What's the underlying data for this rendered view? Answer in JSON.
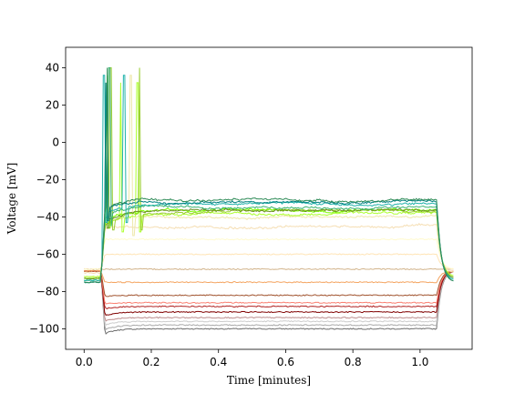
{
  "chart_data": {
    "type": "line",
    "title": "",
    "xlabel": "Time [minutes]",
    "ylabel": "Voltage [mV]",
    "xlim": [
      -0.055,
      1.155
    ],
    "ylim": [
      -111,
      51
    ],
    "xticks": [
      0.0,
      0.2,
      0.4,
      0.6,
      0.8,
      1.0
    ],
    "xtick_labels": [
      "0.0",
      "0.2",
      "0.4",
      "0.6",
      "0.8",
      "1.0"
    ],
    "yticks": [
      -100,
      -80,
      -60,
      -40,
      -20,
      0,
      20,
      40
    ],
    "ytick_labels": [
      "−100",
      "−80",
      "−60",
      "−40",
      "−20",
      "0",
      "20",
      "40"
    ],
    "grid": false,
    "legend": "none",
    "stimulus": {
      "onset": 0.05,
      "offset": 1.05,
      "end": 1.1,
      "baseline": -69
    },
    "series": [
      {
        "color": "#6e6e6e",
        "steady": -100,
        "onset_peak": -104,
        "baseline": -69
      },
      {
        "color": "#a9a9a9",
        "steady": -98,
        "onset_peak": -102,
        "baseline": -69
      },
      {
        "color": "#cccccc",
        "steady": -96,
        "onset_peak": -99,
        "baseline": -69
      },
      {
        "color": "#bc8f8f",
        "steady": -94,
        "onset_peak": -97,
        "baseline": -69
      },
      {
        "color": "#800000",
        "steady": -91,
        "onset_peak": -94,
        "baseline": -69
      },
      {
        "color": "#b22222",
        "steady": -88,
        "onset_peak": -90,
        "baseline": -69
      },
      {
        "color": "#fa8072",
        "steady": -86,
        "onset_peak": -87,
        "baseline": -69
      },
      {
        "color": "#a0522d",
        "steady": -82,
        "onset_peak": -83,
        "baseline": -69
      },
      {
        "color": "#f4a460",
        "steady": -75,
        "onset_peak": -75,
        "baseline": -69
      },
      {
        "color": "#d2b48c",
        "steady": -68,
        "onset_peak": -68,
        "baseline": -68
      },
      {
        "color": "#ffe4b5",
        "steady": -60,
        "onset_peak": -60,
        "baseline": -68
      },
      {
        "color": "#fffacd",
        "steady": -52,
        "onset_peak": -52,
        "baseline": -68
      },
      {
        "color": "#f5deb3",
        "steady": -45,
        "onset_peak": -46,
        "baseline": -70
      },
      {
        "color": "#eee8aa",
        "steady": -40,
        "onset_peak": -45,
        "baseline": -72,
        "spike_times": [
          0.14
        ]
      },
      {
        "color": "#adff2f",
        "steady": -38,
        "onset_peak": -46,
        "baseline": -72,
        "spike_times": [
          0.11,
          0.16
        ]
      },
      {
        "color": "#9acd32",
        "steady": -37,
        "onset_peak": -46,
        "baseline": -73,
        "spike_times": [
          0.08,
          0.165
        ]
      },
      {
        "color": "#7cfc00",
        "steady": -36,
        "onset_peak": -44,
        "baseline": -73,
        "spike_times": [
          0.07
        ]
      },
      {
        "color": "#6b8e23",
        "steady": -36,
        "onset_peak": -44,
        "baseline": -73,
        "spike_times": [
          0.065
        ]
      },
      {
        "color": "#3cb371",
        "steady": -35,
        "onset_peak": -42,
        "baseline": -74,
        "spike_times": [
          0.075
        ]
      },
      {
        "color": "#20b2aa",
        "steady": -33,
        "onset_peak": -40,
        "baseline": -74,
        "spike_times": [
          0.06,
          0.12
        ]
      },
      {
        "color": "#008080",
        "steady": -32,
        "onset_peak": -38,
        "baseline": -75,
        "spike_times": [
          0.065
        ]
      },
      {
        "color": "#2e8b57",
        "steady": -31,
        "onset_peak": -36,
        "baseline": -75,
        "spike_times": [
          0.07
        ]
      }
    ]
  }
}
